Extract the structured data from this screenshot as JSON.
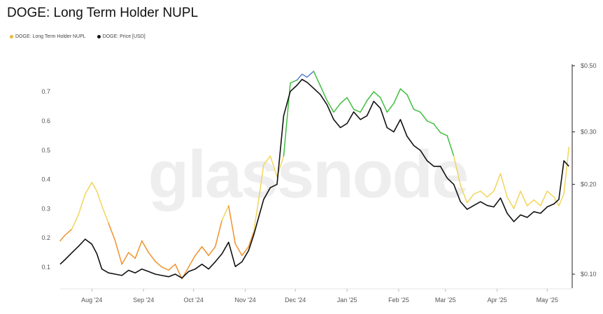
{
  "title": "DOGE: Long Term Holder NUPL",
  "watermark": "glassnode",
  "legend": [
    {
      "label": "DOGE: Long Term Holder NUPL",
      "color": "#e6b93a"
    },
    {
      "label": "DOGE: Price [USD]",
      "color": "#111111"
    }
  ],
  "chart_data": {
    "type": "line",
    "title": "DOGE: Long Term Holder NUPL",
    "x_ticks": [
      "Aug '24",
      "Sep '24",
      "Oct '24",
      "Nov '24",
      "Dec '24",
      "Jan '25",
      "Feb '25",
      "Mar '25",
      "Apr '25",
      "May '25"
    ],
    "y_left": {
      "ticks": [
        "0.1",
        "0.2",
        "0.3",
        "0.4",
        "0.5",
        "0.6",
        "0.7"
      ],
      "range": [
        0.03,
        0.78
      ]
    },
    "y_right": {
      "ticks": [
        "$0.10",
        "$0.20",
        "$0.30",
        "$0.50"
      ],
      "scale": "log",
      "range": [
        0.09,
        0.5
      ]
    },
    "grid": false,
    "legend_position": "top-left",
    "segment_colors": {
      "low": "#f0922c",
      "mid": "#f2d55a",
      "high": "#3fbf3f",
      "top": "#5b7fd8"
    },
    "series": [
      {
        "name": "DOGE: Long Term Holder NUPL",
        "axis": "left",
        "x": [
          "2024-07-13",
          "2024-07-16",
          "2024-07-20",
          "2024-07-24",
          "2024-07-28",
          "2024-08-01",
          "2024-08-04",
          "2024-08-07",
          "2024-08-11",
          "2024-08-15",
          "2024-08-19",
          "2024-08-23",
          "2024-08-27",
          "2024-08-31",
          "2024-09-04",
          "2024-09-08",
          "2024-09-12",
          "2024-09-16",
          "2024-09-20",
          "2024-09-24",
          "2024-09-28",
          "2024-10-02",
          "2024-10-06",
          "2024-10-10",
          "2024-10-14",
          "2024-10-18",
          "2024-10-22",
          "2024-10-26",
          "2024-10-30",
          "2024-11-03",
          "2024-11-06",
          "2024-11-09",
          "2024-11-12",
          "2024-11-16",
          "2024-11-20",
          "2024-11-24",
          "2024-11-28",
          "2024-12-02",
          "2024-12-05",
          "2024-12-08",
          "2024-12-12",
          "2024-12-16",
          "2024-12-20",
          "2024-12-24",
          "2024-12-28",
          "2025-01-01",
          "2025-01-05",
          "2025-01-09",
          "2025-01-13",
          "2025-01-17",
          "2025-01-21",
          "2025-01-25",
          "2025-01-29",
          "2025-02-02",
          "2025-02-06",
          "2025-02-10",
          "2025-02-14",
          "2025-02-18",
          "2025-02-22",
          "2025-02-26",
          "2025-03-02",
          "2025-03-06",
          "2025-03-10",
          "2025-03-14",
          "2025-03-18",
          "2025-03-22",
          "2025-03-26",
          "2025-03-30",
          "2025-04-03",
          "2025-04-07",
          "2025-04-11",
          "2025-04-15",
          "2025-04-19",
          "2025-04-23",
          "2025-04-27",
          "2025-05-01",
          "2025-05-05",
          "2025-05-08",
          "2025-05-11",
          "2025-05-14"
        ],
        "values": [
          0.19,
          0.21,
          0.23,
          0.28,
          0.35,
          0.39,
          0.36,
          0.31,
          0.25,
          0.19,
          0.11,
          0.15,
          0.13,
          0.19,
          0.15,
          0.12,
          0.1,
          0.09,
          0.11,
          0.06,
          0.1,
          0.14,
          0.17,
          0.14,
          0.17,
          0.26,
          0.31,
          0.18,
          0.14,
          0.17,
          0.22,
          0.33,
          0.45,
          0.48,
          0.41,
          0.48,
          0.73,
          0.74,
          0.76,
          0.75,
          0.77,
          0.72,
          0.67,
          0.63,
          0.66,
          0.68,
          0.64,
          0.63,
          0.67,
          0.7,
          0.68,
          0.63,
          0.66,
          0.71,
          0.69,
          0.64,
          0.63,
          0.6,
          0.59,
          0.56,
          0.55,
          0.48,
          0.38,
          0.32,
          0.35,
          0.36,
          0.34,
          0.36,
          0.42,
          0.34,
          0.3,
          0.36,
          0.31,
          0.33,
          0.31,
          0.36,
          0.34,
          0.31,
          0.35,
          0.51
        ]
      },
      {
        "name": "DOGE: Price [USD]",
        "axis": "right",
        "x": [
          "2024-07-13",
          "2024-07-16",
          "2024-07-20",
          "2024-07-24",
          "2024-07-28",
          "2024-08-01",
          "2024-08-04",
          "2024-08-07",
          "2024-08-11",
          "2024-08-15",
          "2024-08-19",
          "2024-08-23",
          "2024-08-27",
          "2024-08-31",
          "2024-09-04",
          "2024-09-08",
          "2024-09-12",
          "2024-09-16",
          "2024-09-20",
          "2024-09-24",
          "2024-09-28",
          "2024-10-02",
          "2024-10-06",
          "2024-10-10",
          "2024-10-14",
          "2024-10-18",
          "2024-10-22",
          "2024-10-26",
          "2024-10-30",
          "2024-11-03",
          "2024-11-06",
          "2024-11-09",
          "2024-11-12",
          "2024-11-16",
          "2024-11-20",
          "2024-11-24",
          "2024-11-28",
          "2024-12-02",
          "2024-12-05",
          "2024-12-08",
          "2024-12-12",
          "2024-12-16",
          "2024-12-20",
          "2024-12-24",
          "2024-12-28",
          "2025-01-01",
          "2025-01-05",
          "2025-01-09",
          "2025-01-13",
          "2025-01-17",
          "2025-01-21",
          "2025-01-25",
          "2025-01-29",
          "2025-02-02",
          "2025-02-06",
          "2025-02-10",
          "2025-02-14",
          "2025-02-18",
          "2025-02-22",
          "2025-02-26",
          "2025-03-02",
          "2025-03-06",
          "2025-03-10",
          "2025-03-14",
          "2025-03-18",
          "2025-03-22",
          "2025-03-26",
          "2025-03-30",
          "2025-04-03",
          "2025-04-07",
          "2025-04-11",
          "2025-04-15",
          "2025-04-19",
          "2025-04-23",
          "2025-04-27",
          "2025-05-01",
          "2025-05-05",
          "2025-05-08",
          "2025-05-11",
          "2025-05-14"
        ],
        "values": [
          0.108,
          0.112,
          0.118,
          0.124,
          0.131,
          0.126,
          0.117,
          0.104,
          0.101,
          0.1,
          0.099,
          0.103,
          0.101,
          0.104,
          0.102,
          0.1,
          0.099,
          0.098,
          0.1,
          0.097,
          0.102,
          0.104,
          0.108,
          0.104,
          0.11,
          0.117,
          0.128,
          0.106,
          0.11,
          0.12,
          0.135,
          0.155,
          0.178,
          0.195,
          0.2,
          0.34,
          0.41,
          0.43,
          0.45,
          0.44,
          0.42,
          0.4,
          0.37,
          0.33,
          0.31,
          0.32,
          0.35,
          0.33,
          0.34,
          0.38,
          0.36,
          0.31,
          0.3,
          0.33,
          0.29,
          0.27,
          0.26,
          0.24,
          0.23,
          0.23,
          0.21,
          0.2,
          0.175,
          0.165,
          0.17,
          0.175,
          0.17,
          0.168,
          0.18,
          0.16,
          0.15,
          0.158,
          0.155,
          0.162,
          0.16,
          0.168,
          0.172,
          0.178,
          0.24,
          0.23
        ]
      }
    ]
  }
}
